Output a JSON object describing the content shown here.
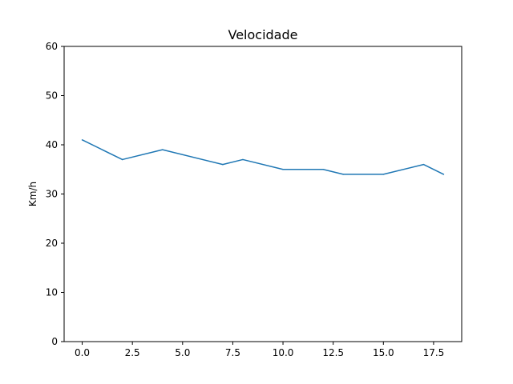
{
  "chart_data": {
    "type": "line",
    "title": "Velocidade",
    "xlabel": "",
    "ylabel": "Km/h",
    "xlim": [
      -0.9,
      18.9
    ],
    "ylim": [
      0,
      60
    ],
    "x_ticks": [
      0.0,
      2.5,
      5.0,
      7.5,
      10.0,
      12.5,
      15.0,
      17.5
    ],
    "x_tick_labels": [
      "0.0",
      "2.5",
      "5.0",
      "7.5",
      "10.0",
      "12.5",
      "15.0",
      "17.5"
    ],
    "y_ticks": [
      0,
      10,
      20,
      30,
      40,
      50,
      60
    ],
    "y_tick_labels": [
      "0",
      "10",
      "20",
      "30",
      "40",
      "50",
      "60"
    ],
    "grid": false,
    "series": [
      {
        "color": "#1f77b4",
        "x": [
          0,
          2,
          4,
          7,
          8,
          10,
          12,
          13,
          15,
          17,
          18
        ],
        "y": [
          41,
          37,
          39,
          36,
          37,
          35,
          35,
          34,
          34,
          36,
          34
        ]
      }
    ]
  }
}
